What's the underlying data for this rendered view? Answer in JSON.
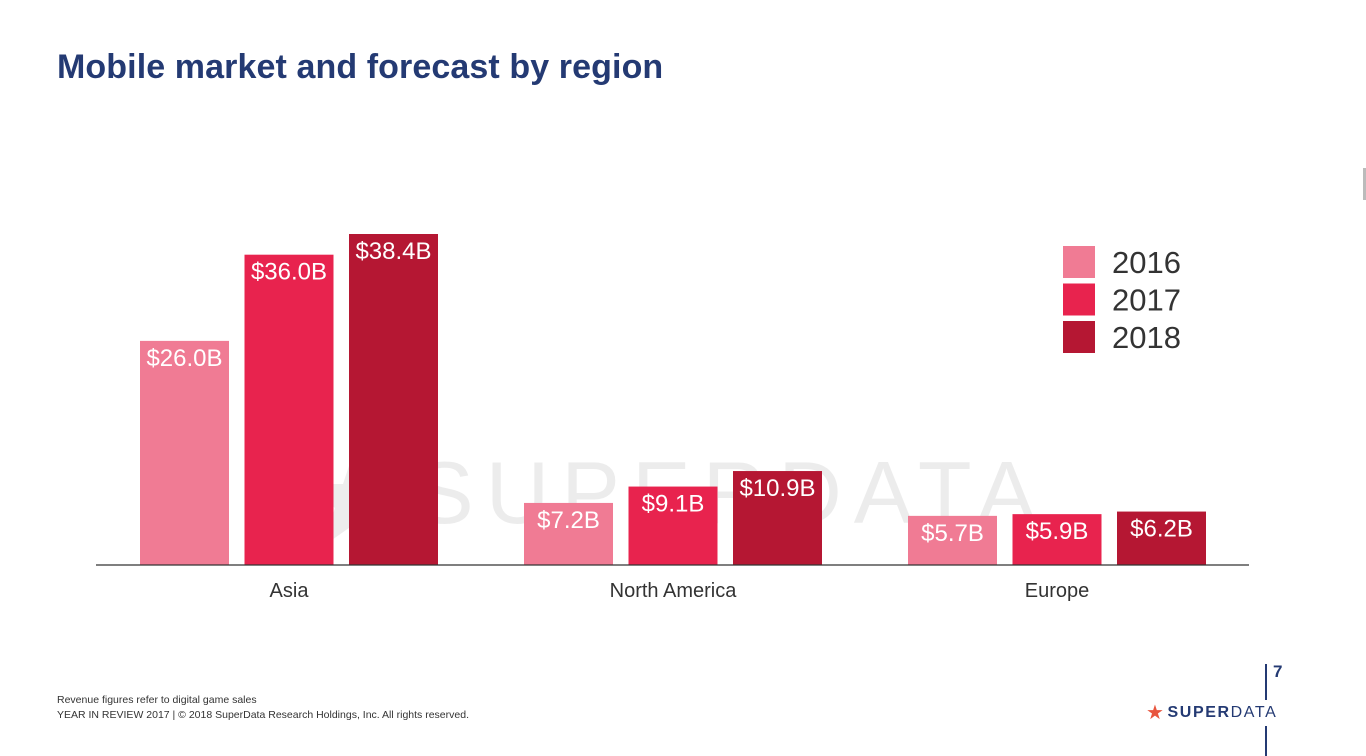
{
  "slide": {
    "title": "Mobile market and forecast by region",
    "footnote_line1": "Revenue figures refer to digital game sales",
    "footnote_line2": "YEAR IN REVIEW 2017  |  © 2018 SuperData Research Holdings, Inc. All rights reserved.",
    "page_number": "7",
    "brand_strong": "SUPER",
    "brand_light": "DATA",
    "watermark": "SUPERDATA",
    "colors": {
      "title": "#243a73",
      "series_2016": "#f07b94",
      "series_2017": "#e8234e",
      "series_2018": "#b51733",
      "logo_star": "#e8553e"
    }
  },
  "chart_data": {
    "type": "bar",
    "title": "Mobile market and forecast by region",
    "categories": [
      "Asia",
      "North America",
      "Europe"
    ],
    "series": [
      {
        "name": "2016",
        "values": [
          26.0,
          7.2,
          5.7
        ],
        "labels": [
          "$26.0B",
          "$7.2B",
          "$5.7B"
        ],
        "color": "#f07b94"
      },
      {
        "name": "2017",
        "values": [
          36.0,
          9.1,
          5.9
        ],
        "labels": [
          "$36.0B",
          "$9.1B",
          "$5.9B"
        ],
        "color": "#e8234e"
      },
      {
        "name": "2018",
        "values": [
          38.4,
          10.9,
          6.2
        ],
        "labels": [
          "$38.4B",
          "$10.9B",
          "$6.2B"
        ],
        "color": "#b51733"
      }
    ],
    "ylim": [
      0,
      38.4
    ],
    "xlabel": "",
    "ylabel": "",
    "grid": false,
    "legend": "top-right"
  }
}
